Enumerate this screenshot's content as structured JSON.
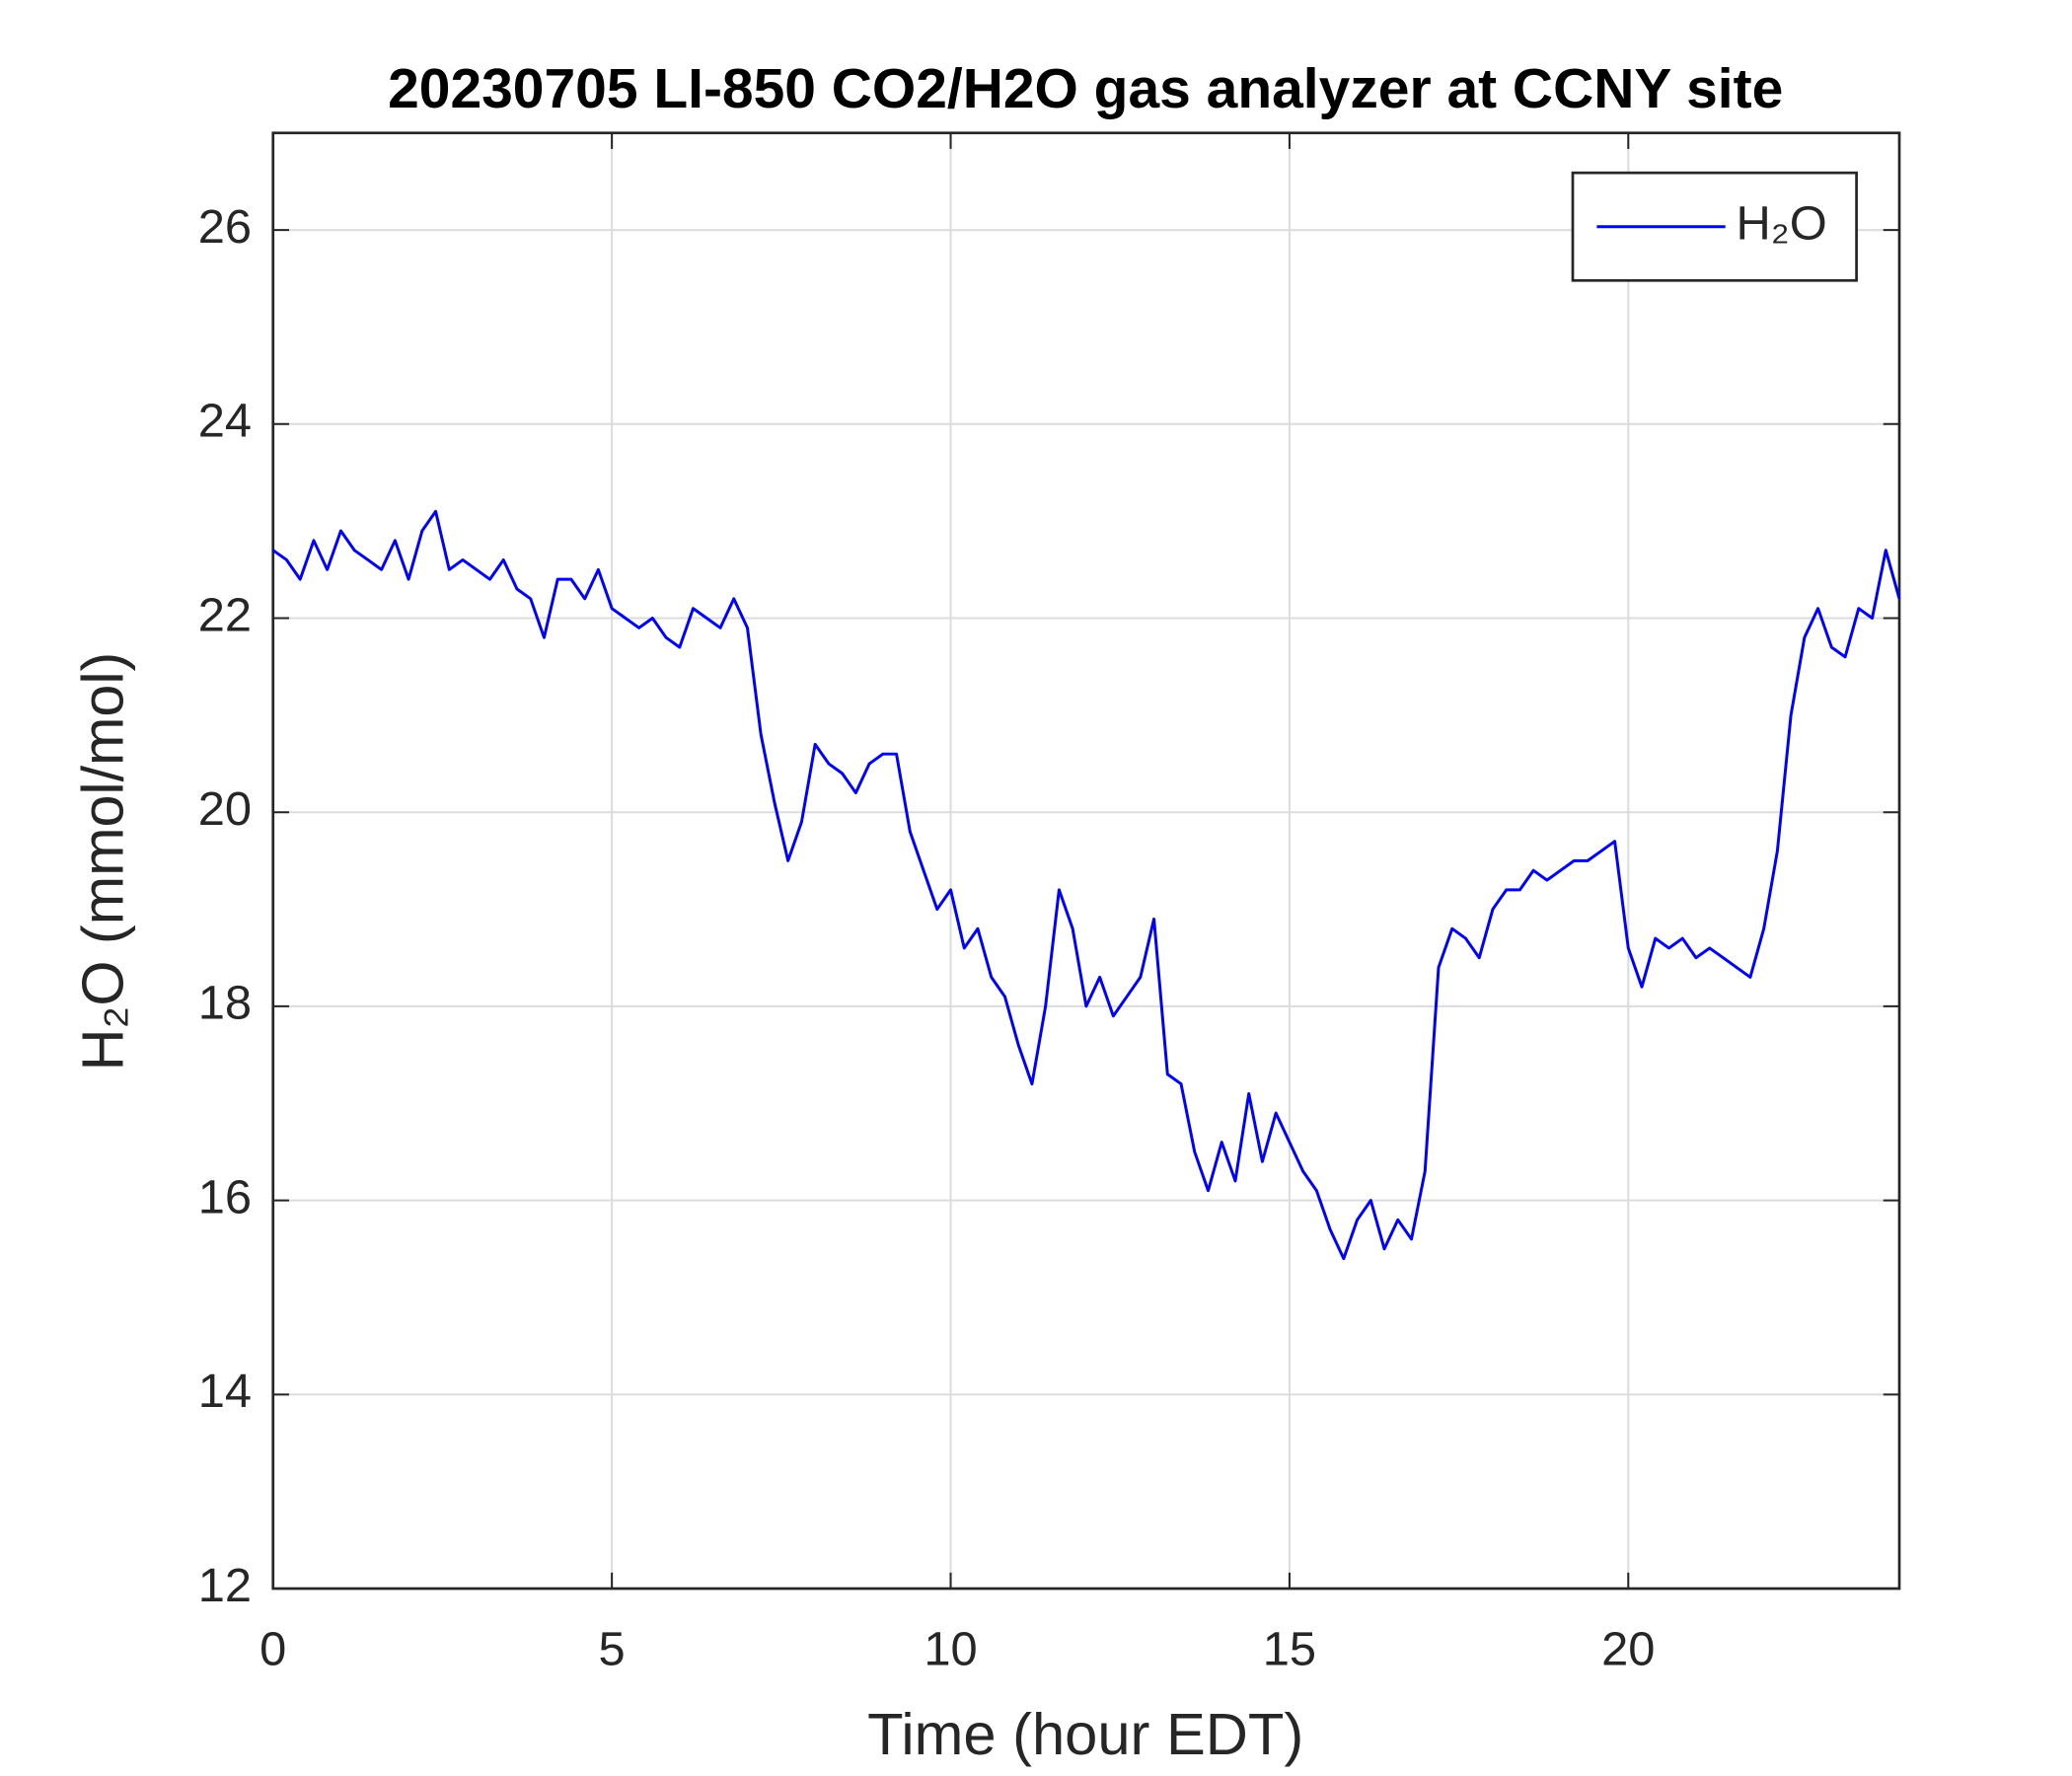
{
  "chart_data": {
    "type": "line",
    "title": "20230705 LI-850 CO2/H2O gas analyzer at CCNY site",
    "x_label": "Time (hour EDT)",
    "y_label": "H₂O (mmol/mol)",
    "xlim": [
      0,
      24
    ],
    "ylim": [
      12,
      27
    ],
    "xticks": [
      0,
      5,
      10,
      15,
      20
    ],
    "yticks": [
      12,
      14,
      16,
      18,
      20,
      22,
      24,
      26
    ],
    "grid": true,
    "legend": "northeast",
    "x": [
      0,
      0.2,
      0.4,
      0.6,
      0.8,
      1,
      1.2,
      1.4,
      1.6,
      1.8,
      2,
      2.2,
      2.4,
      2.6,
      2.8,
      3,
      3.2,
      3.4,
      3.6,
      3.8,
      4,
      4.2,
      4.4,
      4.6,
      4.8,
      5,
      5.2,
      5.4,
      5.6,
      5.8,
      6,
      6.2,
      6.4,
      6.6,
      6.8,
      7,
      7.2,
      7.4,
      7.6,
      7.8,
      8,
      8.2,
      8.4,
      8.6,
      8.8,
      9,
      9.2,
      9.4,
      9.6,
      9.8,
      10,
      10.2,
      10.4,
      10.6,
      10.8,
      11,
      11.2,
      11.4,
      11.6,
      11.8,
      12,
      12.2,
      12.4,
      12.6,
      12.8,
      13,
      13.2,
      13.4,
      13.6,
      13.8,
      14,
      14.2,
      14.4,
      14.6,
      14.8,
      15,
      15.2,
      15.4,
      15.6,
      15.8,
      16,
      16.2,
      16.4,
      16.6,
      16.8,
      17,
      17.2,
      17.4,
      17.6,
      17.8,
      18,
      18.2,
      18.4,
      18.6,
      18.8,
      19,
      19.2,
      19.4,
      19.6,
      19.8,
      20,
      20.2,
      20.4,
      20.6,
      20.8,
      21,
      21.2,
      21.4,
      21.6,
      21.8,
      22,
      22.2,
      22.4,
      22.6,
      22.8,
      23,
      23.2,
      23.4,
      23.6,
      23.8,
      24
    ],
    "series": [
      {
        "name": "H₂O",
        "color": "#0000ff",
        "values": [
          22.7,
          22.6,
          22.4,
          22.8,
          22.5,
          22.9,
          22.7,
          22.6,
          22.5,
          22.8,
          22.4,
          22.9,
          23.1,
          22.5,
          22.6,
          22.5,
          22.4,
          22.6,
          22.3,
          22.2,
          21.8,
          22.4,
          22.4,
          22.2,
          22.5,
          22.1,
          22.0,
          21.9,
          22.0,
          21.8,
          21.7,
          22.1,
          22.0,
          21.9,
          22.2,
          21.9,
          20.8,
          20.1,
          19.5,
          19.9,
          20.7,
          20.5,
          20.4,
          20.2,
          20.5,
          20.6,
          20.6,
          19.8,
          19.4,
          19.0,
          19.2,
          18.6,
          18.8,
          18.3,
          18.1,
          17.6,
          17.2,
          18.0,
          19.2,
          18.8,
          18.0,
          18.3,
          17.9,
          18.1,
          18.3,
          18.9,
          17.3,
          17.2,
          16.5,
          16.1,
          16.6,
          16.2,
          17.1,
          16.4,
          16.9,
          16.6,
          16.3,
          16.1,
          15.7,
          15.4,
          15.8,
          16.0,
          15.5,
          15.8,
          15.6,
          16.3,
          18.4,
          18.8,
          18.7,
          18.5,
          19.0,
          19.2,
          19.2,
          19.4,
          19.3,
          19.4,
          19.5,
          19.5,
          19.6,
          19.7,
          18.6,
          18.2,
          18.7,
          18.6,
          18.7,
          18.5,
          18.6,
          18.5,
          18.4,
          18.3,
          18.8,
          19.6,
          21.0,
          21.8,
          22.1,
          21.7,
          21.6,
          22.1,
          22.0,
          22.7,
          22.2
        ]
      }
    ]
  }
}
